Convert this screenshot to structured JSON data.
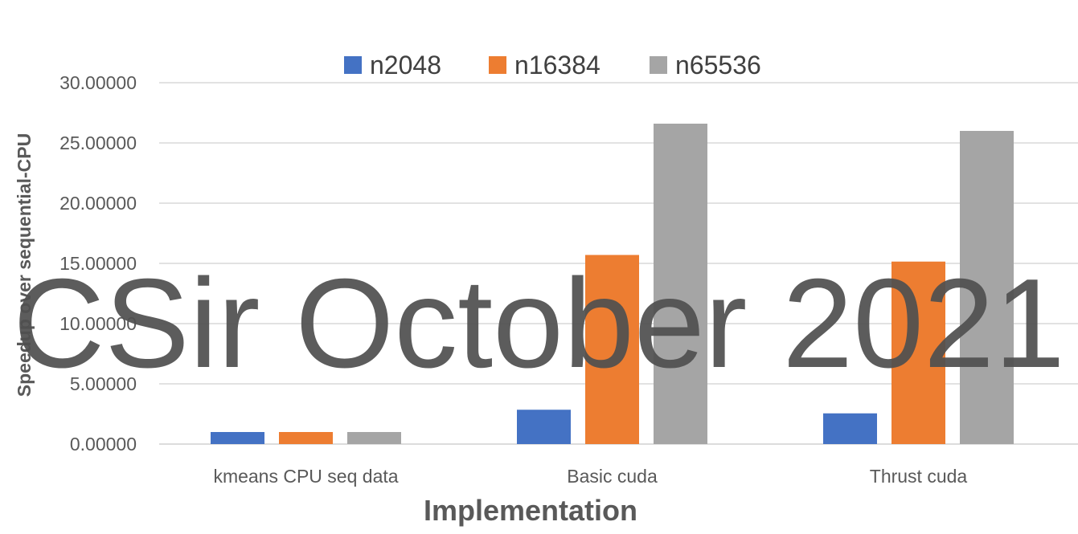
{
  "chart_data": {
    "type": "bar",
    "categories": [
      "kmeans CPU seq data",
      "Basic cuda",
      "Thrust cuda"
    ],
    "series": [
      {
        "name": "n2048",
        "values": [
          1.0,
          2.85,
          2.55
        ],
        "color": "#4472C4"
      },
      {
        "name": "n16384",
        "values": [
          1.0,
          15.7,
          15.15
        ],
        "color": "#ED7D31"
      },
      {
        "name": "n65536",
        "values": [
          1.0,
          26.6,
          26.0
        ],
        "color": "#A5A5A5"
      }
    ],
    "yticks": [
      "0.00000",
      "5.00000",
      "10.00000",
      "15.00000",
      "20.00000",
      "25.00000",
      "30.00000"
    ],
    "ylim": [
      0,
      30
    ],
    "xlabel": "Implementation",
    "ylabel": "Speedup over sequential-CPU",
    "legend_position": "top",
    "grid": true
  },
  "watermark": "CSir October 2021"
}
